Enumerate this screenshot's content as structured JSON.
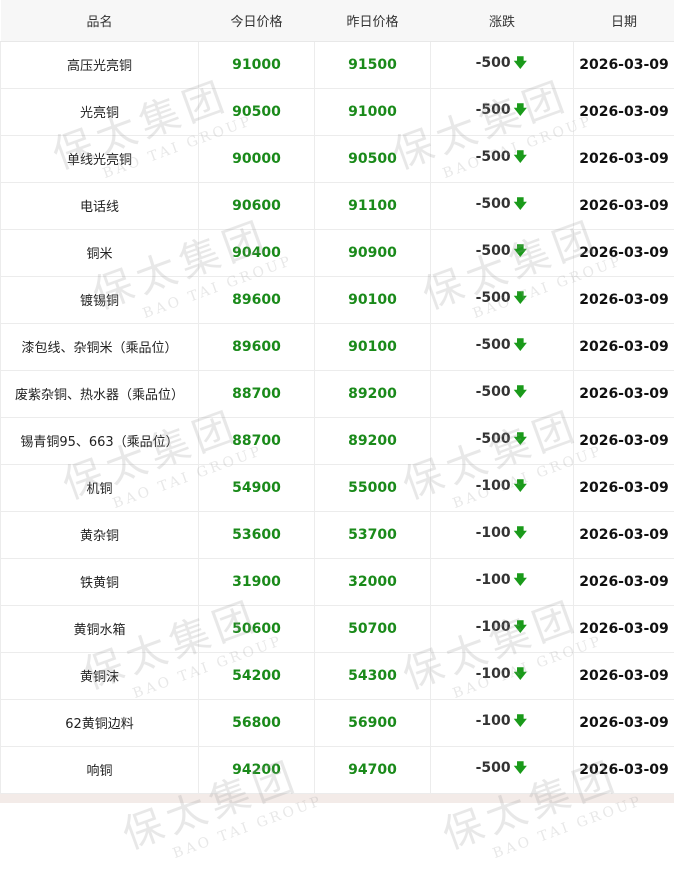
{
  "watermark": {
    "cn": "保太集团",
    "en": "BAO TAI GROUP"
  },
  "colors": {
    "price": "#1a8a1a",
    "down_arrow": "#1a9a1a"
  },
  "table": {
    "headers": [
      "品名",
      "今日价格",
      "昨日价格",
      "涨跌",
      "日期"
    ],
    "rows": [
      {
        "name": "高压光亮铜",
        "today": "91000",
        "yesterday": "91500",
        "change": "-500",
        "trend": "down",
        "date": "2026-03-09"
      },
      {
        "name": "光亮铜",
        "today": "90500",
        "yesterday": "91000",
        "change": "-500",
        "trend": "down",
        "date": "2026-03-09"
      },
      {
        "name": "单线光亮铜",
        "today": "90000",
        "yesterday": "90500",
        "change": "-500",
        "trend": "down",
        "date": "2026-03-09"
      },
      {
        "name": "电话线",
        "today": "90600",
        "yesterday": "91100",
        "change": "-500",
        "trend": "down",
        "date": "2026-03-09"
      },
      {
        "name": "铜米",
        "today": "90400",
        "yesterday": "90900",
        "change": "-500",
        "trend": "down",
        "date": "2026-03-09"
      },
      {
        "name": "镀锡铜",
        "today": "89600",
        "yesterday": "90100",
        "change": "-500",
        "trend": "down",
        "date": "2026-03-09"
      },
      {
        "name": "漆包线、杂铜米（乘品位）",
        "today": "89600",
        "yesterday": "90100",
        "change": "-500",
        "trend": "down",
        "date": "2026-03-09"
      },
      {
        "name": "废紫杂铜、热水器（乘品位）",
        "today": "88700",
        "yesterday": "89200",
        "change": "-500",
        "trend": "down",
        "date": "2026-03-09"
      },
      {
        "name": "锡青铜95、663（乘品位）",
        "today": "88700",
        "yesterday": "89200",
        "change": "-500",
        "trend": "down",
        "date": "2026-03-09"
      },
      {
        "name": "机铜",
        "today": "54900",
        "yesterday": "55000",
        "change": "-100",
        "trend": "down",
        "date": "2026-03-09"
      },
      {
        "name": "黄杂铜",
        "today": "53600",
        "yesterday": "53700",
        "change": "-100",
        "trend": "down",
        "date": "2026-03-09"
      },
      {
        "name": "铁黄铜",
        "today": "31900",
        "yesterday": "32000",
        "change": "-100",
        "trend": "down",
        "date": "2026-03-09"
      },
      {
        "name": "黄铜水箱",
        "today": "50600",
        "yesterday": "50700",
        "change": "-100",
        "trend": "down",
        "date": "2026-03-09"
      },
      {
        "name": "黄铜沫",
        "today": "54200",
        "yesterday": "54300",
        "change": "-100",
        "trend": "down",
        "date": "2026-03-09"
      },
      {
        "name": "62黄铜边料",
        "today": "56800",
        "yesterday": "56900",
        "change": "-100",
        "trend": "down",
        "date": "2026-03-09"
      },
      {
        "name": "响铜",
        "today": "94200",
        "yesterday": "94700",
        "change": "-500",
        "trend": "down",
        "date": "2026-03-09"
      }
    ]
  }
}
